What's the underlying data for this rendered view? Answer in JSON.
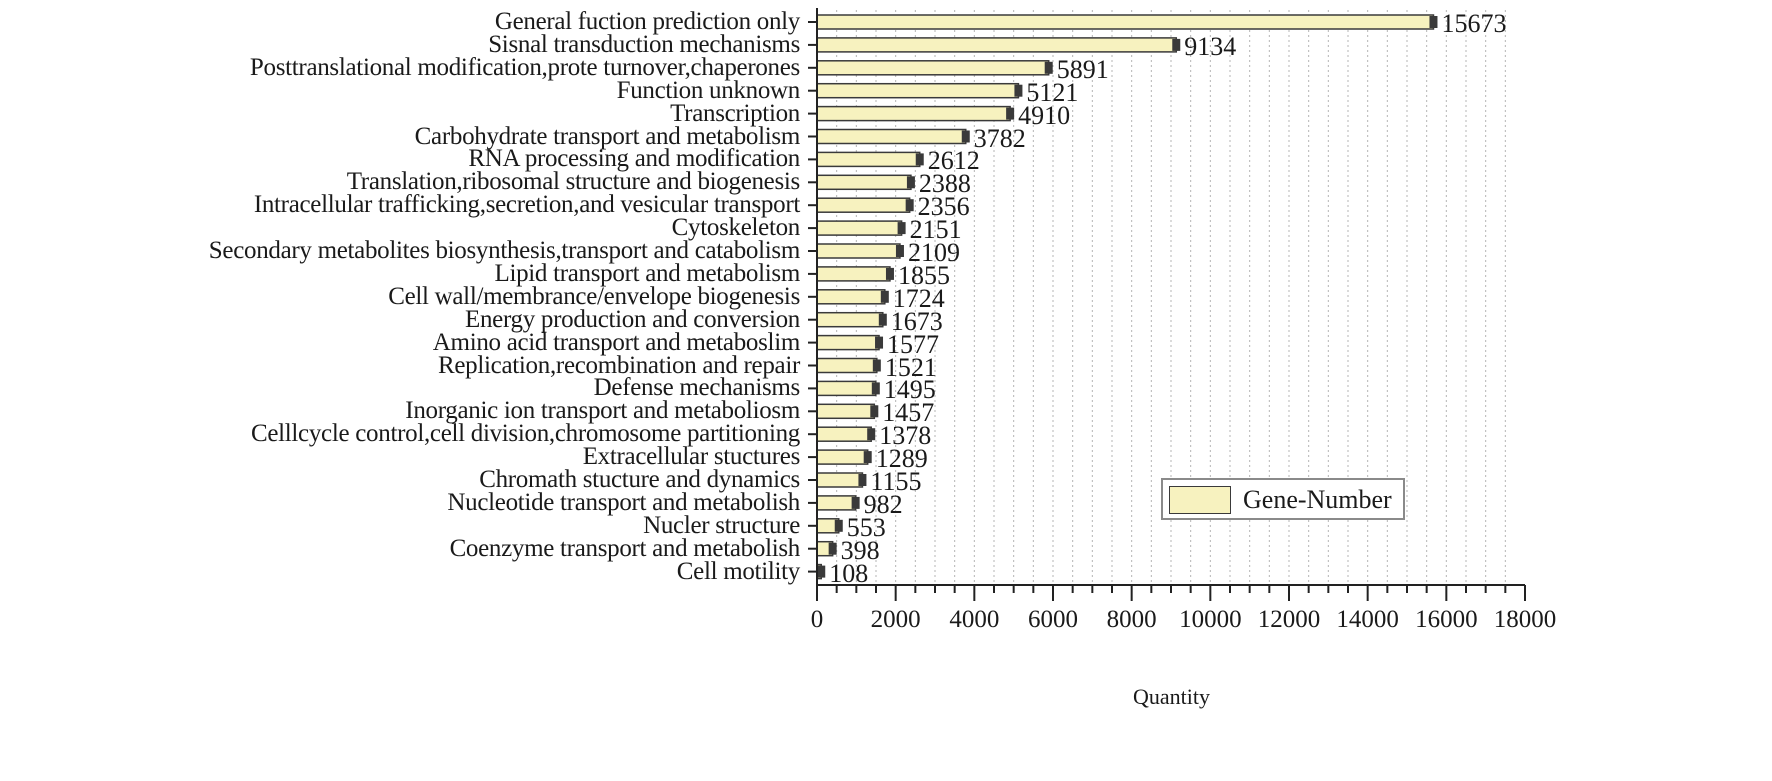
{
  "chart_data": {
    "type": "bar",
    "orientation": "horizontal",
    "title": "",
    "xlabel": "Quantity",
    "ylabel": "",
    "xlim": [
      0,
      18000
    ],
    "xticks": [
      0,
      2000,
      4000,
      6000,
      8000,
      10000,
      12000,
      14000,
      16000,
      18000
    ],
    "grid": "vertical dotted",
    "legend": {
      "position": "lower right",
      "entries": [
        "Gene-Number"
      ]
    },
    "bar_color": "#f7f2bf",
    "bar_edge_color": "#3a3a3a",
    "categories": [
      "General fuction prediction only",
      "Sisnal transduction mechanisms",
      "Posttranslational modification,prote turnover,chaperones",
      "Function unknown",
      "Transcription",
      "Carbohydrate transport and metabolism",
      "RNA processing and modification",
      "Translation,ribosomal structure and biogenesis",
      "Intracellular trafficking,secretion,and vesicular transport",
      "Cytoskeleton",
      "Secondary metabolites biosynthesis,transport and catabolism",
      "Lipid transport and metabolism",
      "Cell wall/membrance/envelope biogenesis",
      "Energy production and conversion",
      "Amino acid transport and metaboslim",
      "Replication,recombination and repair",
      "Defense mechanisms",
      "Inorganic ion transport and metaboliosm",
      "Celllcycle control,cell division,chromosome partitioning",
      "Extracellular stuctures",
      "Chromath stucture and dynamics",
      "Nucleotide transport and metabolish",
      "Nucler structure",
      "Coenzyme transport and metabolish",
      "Cell motility"
    ],
    "series": [
      {
        "name": "Gene-Number",
        "values": [
          15673,
          9134,
          5891,
          5121,
          4910,
          3782,
          2612,
          2388,
          2356,
          2151,
          2109,
          1855,
          1724,
          1673,
          1577,
          1521,
          1495,
          1457,
          1378,
          1289,
          1155,
          982,
          553,
          398,
          108
        ]
      }
    ]
  },
  "axis": {
    "x_title": "Quantity",
    "tick_labels": [
      "0",
      "2000",
      "4000",
      "6000",
      "8000",
      "10000",
      "12000",
      "14000",
      "16000",
      "18000"
    ]
  },
  "legend": {
    "label": "Gene-Number"
  }
}
